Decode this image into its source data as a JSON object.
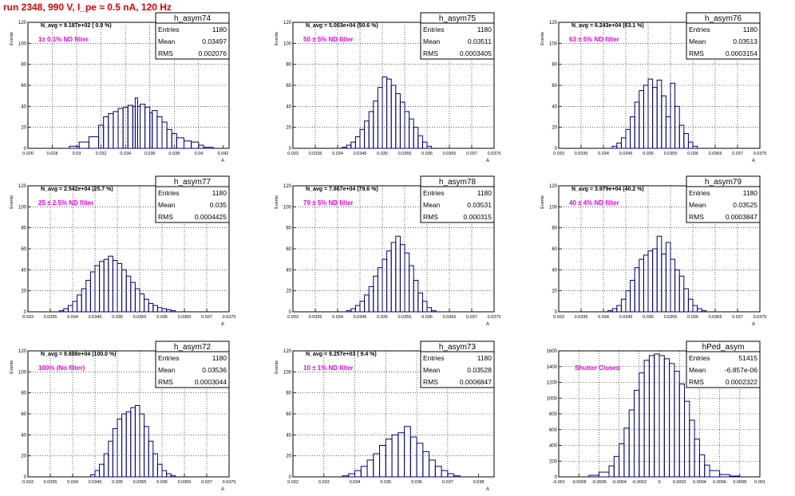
{
  "page_title": "run 2348,   990 V, I_pe ≈ 0.5 nA, 120 Hz",
  "colors": {
    "histogram": "#00007a",
    "annotation": "#e600e6",
    "title": "#e00000",
    "grid": "#000000"
  },
  "chart_data": [
    {
      "type": "bar",
      "hist_name": "h_asym74",
      "stats": {
        "entries": "1180",
        "mean": "0.03497",
        "rms": "0.002076"
      },
      "navg_text": "N_avg = 9.187e+02 ( 0.9 %)",
      "filter_label": "1± 0.1% ND filter",
      "ylabel": "Events",
      "xlabel": "A",
      "xlim": [
        0.026,
        0.0425
      ],
      "ylim": [
        0,
        120
      ],
      "xticks": [
        0.026,
        0.028,
        0.03,
        0.032,
        0.034,
        0.036,
        0.038,
        0.04,
        0.042
      ],
      "xtick_labels": [
        "0.026",
        "0.028",
        "0.03",
        "0.032",
        "0.034",
        "0.036",
        "0.038",
        "0.04",
        "0.042"
      ],
      "yticks": [
        0,
        20,
        40,
        60,
        80,
        100,
        120
      ],
      "x": [
        0.0294,
        0.0302,
        0.031,
        0.0318,
        0.0322,
        0.0326,
        0.033,
        0.0334,
        0.0338,
        0.0342,
        0.0346,
        0.0348,
        0.035,
        0.0352,
        0.0356,
        0.036,
        0.0362,
        0.0366,
        0.037,
        0.0374,
        0.0378,
        0.0382,
        0.0388,
        0.0394,
        0.04,
        0.0404
      ],
      "y": [
        2,
        6,
        11,
        22,
        30,
        33,
        35,
        38,
        39,
        41,
        40,
        48,
        40,
        42,
        39,
        34,
        36,
        30,
        25,
        18,
        14,
        10,
        7,
        6,
        3,
        1
      ]
    },
    {
      "type": "bar",
      "hist_name": "h_asym75",
      "stats": {
        "entries": "1180",
        "mean": "0.03511",
        "rms": "0.0003405"
      },
      "navg_text": "N_avg = 5.003e+04 (50.6 %)",
      "filter_label": "50 ± 5% ND filter",
      "ylabel": "Events",
      "xlabel": "A",
      "xlim": [
        0.033,
        0.0375
      ],
      "ylim": [
        0,
        120
      ],
      "xticks": [
        0.033,
        0.0335,
        0.034,
        0.0345,
        0.035,
        0.0355,
        0.036,
        0.0365,
        0.037,
        0.0375
      ],
      "xtick_labels": [
        "0.033",
        "0.0335",
        "0.034",
        "0.0345",
        "0.035",
        "0.0355",
        "0.036",
        "0.0365",
        "0.037",
        "0.0375"
      ],
      "yticks": [
        0,
        20,
        40,
        60,
        80,
        100,
        120
      ],
      "x": [
        0.0341,
        0.0342,
        0.0343,
        0.0344,
        0.0345,
        0.0346,
        0.0347,
        0.0348,
        0.0349,
        0.035,
        0.0351,
        0.0352,
        0.0353,
        0.0354,
        0.0355,
        0.0356,
        0.0357,
        0.0358,
        0.0359,
        0.036
      ],
      "y": [
        1,
        3,
        6,
        11,
        18,
        26,
        35,
        45,
        58,
        68,
        66,
        60,
        52,
        44,
        35,
        28,
        20,
        12,
        6,
        2
      ]
    },
    {
      "type": "bar",
      "hist_name": "h_asym76",
      "stats": {
        "entries": "1180",
        "mean": "0.03513",
        "rms": "0.0003154"
      },
      "navg_text": "N_avg = 6.243e+04 (63.1 %)",
      "filter_label": "63 ± 5% ND filter",
      "ylabel": "Events",
      "xlabel": "A",
      "xlim": [
        0.033,
        0.0375
      ],
      "ylim": [
        0,
        120
      ],
      "xticks": [
        0.033,
        0.0335,
        0.034,
        0.0345,
        0.035,
        0.0355,
        0.036,
        0.0365,
        0.037,
        0.0375
      ],
      "xtick_labels": [
        "0.033",
        "0.0335",
        "0.034",
        "0.0345",
        "0.035",
        "0.0355",
        "0.036",
        "0.0365",
        "0.037",
        "0.0375"
      ],
      "yticks": [
        0,
        20,
        40,
        60,
        80,
        100,
        120
      ],
      "x": [
        0.0342,
        0.0343,
        0.0344,
        0.0345,
        0.0346,
        0.0347,
        0.0348,
        0.0349,
        0.035,
        0.0351,
        0.0352,
        0.0353,
        0.0354,
        0.0355,
        0.0356,
        0.0357,
        0.0358,
        0.0359,
        0.036
      ],
      "y": [
        2,
        5,
        10,
        18,
        30,
        44,
        55,
        60,
        66,
        58,
        65,
        50,
        30,
        62,
        40,
        22,
        14,
        6,
        2
      ]
    },
    {
      "type": "bar",
      "hist_name": "h_asym77",
      "stats": {
        "entries": "1180",
        "mean": "0.035",
        "rms": "0.0004425"
      },
      "navg_text": "N_avg = 2.542e+04 (25.7 %)",
      "filter_label": "25 ± 2.5% ND filter",
      "ylabel": "Events",
      "xlabel": "A",
      "xlim": [
        0.033,
        0.0375
      ],
      "ylim": [
        0,
        120
      ],
      "xticks": [
        0.033,
        0.0335,
        0.034,
        0.0345,
        0.035,
        0.0355,
        0.036,
        0.0365,
        0.037,
        0.0375
      ],
      "xtick_labels": [
        "0.033",
        "0.0335",
        "0.034",
        "0.0345",
        "0.035",
        "0.0355",
        "0.036",
        "0.0365",
        "0.037",
        "0.0375"
      ],
      "yticks": [
        0,
        20,
        40,
        60,
        80,
        100,
        120
      ],
      "x": [
        0.0337,
        0.0338,
        0.0339,
        0.034,
        0.0341,
        0.0342,
        0.0343,
        0.0344,
        0.0345,
        0.0346,
        0.0347,
        0.0348,
        0.0349,
        0.035,
        0.0351,
        0.0352,
        0.0353,
        0.0354,
        0.0355,
        0.0356,
        0.0357,
        0.0358,
        0.0359,
        0.036,
        0.0361,
        0.0362
      ],
      "y": [
        1,
        3,
        6,
        10,
        16,
        22,
        30,
        38,
        44,
        48,
        50,
        53,
        49,
        46,
        40,
        34,
        28,
        22,
        17,
        12,
        8,
        6,
        4,
        3,
        2,
        1
      ]
    },
    {
      "type": "bar",
      "hist_name": "h_asym78",
      "stats": {
        "entries": "1180",
        "mean": "0.03531",
        "rms": "0.000315"
      },
      "navg_text": "N_avg = 7.867e+04 (79.6 %)",
      "filter_label": "79 ± 5% ND filter",
      "ylabel": "Events",
      "xlabel": "A",
      "xlim": [
        0.033,
        0.0375
      ],
      "ylim": [
        0,
        120
      ],
      "xticks": [
        0.033,
        0.0335,
        0.034,
        0.0345,
        0.035,
        0.0355,
        0.036,
        0.0365,
        0.037,
        0.0375
      ],
      "xtick_labels": [
        "0.033",
        "0.0335",
        "0.034",
        "0.0345",
        "0.035",
        "0.0355",
        "0.036",
        "0.0365",
        "0.037",
        "0.0375"
      ],
      "yticks": [
        0,
        20,
        40,
        60,
        80,
        100,
        120
      ],
      "x": [
        0.0342,
        0.0343,
        0.0344,
        0.0345,
        0.0346,
        0.0347,
        0.0348,
        0.0349,
        0.035,
        0.0351,
        0.0352,
        0.0353,
        0.0354,
        0.0355,
        0.0356,
        0.0357,
        0.0358,
        0.0359,
        0.036,
        0.0361
      ],
      "y": [
        1,
        3,
        6,
        10,
        16,
        24,
        34,
        42,
        50,
        58,
        66,
        72,
        64,
        56,
        44,
        30,
        18,
        10,
        4,
        1
      ]
    },
    {
      "type": "bar",
      "hist_name": "h_asym79",
      "stats": {
        "entries": "1180",
        "mean": "0.03525",
        "rms": "0.0003847"
      },
      "navg_text": "N_avg = 3.979e+04 (40.2 %)",
      "filter_label": "40 ± 4% ND filter",
      "ylabel": "Events",
      "xlabel": "A",
      "xlim": [
        0.033,
        0.0375
      ],
      "ylim": [
        0,
        120
      ],
      "xticks": [
        0.033,
        0.0335,
        0.034,
        0.0345,
        0.035,
        0.0355,
        0.036,
        0.0365,
        0.037,
        0.0375
      ],
      "xtick_labels": [
        "0.033",
        "0.0335",
        "0.034",
        "0.0345",
        "0.035",
        "0.0355",
        "0.036",
        "0.0365",
        "0.037",
        "0.0375"
      ],
      "yticks": [
        0,
        20,
        40,
        60,
        80,
        100,
        120
      ],
      "x": [
        0.0341,
        0.0342,
        0.0343,
        0.0344,
        0.0345,
        0.0346,
        0.0347,
        0.0348,
        0.0349,
        0.035,
        0.0351,
        0.0352,
        0.0353,
        0.0354,
        0.0355,
        0.0356,
        0.0357,
        0.0358,
        0.0359,
        0.036,
        0.0361,
        0.0362
      ],
      "y": [
        1,
        3,
        6,
        12,
        20,
        30,
        42,
        50,
        54,
        58,
        60,
        72,
        55,
        66,
        50,
        40,
        34,
        22,
        12,
        6,
        3,
        1
      ]
    },
    {
      "type": "bar",
      "hist_name": "h_asym72",
      "stats": {
        "entries": "1180",
        "mean": "0.03536",
        "rms": "0.0003044"
      },
      "navg_text": "N_avg = 9.888e+04 (100.0 %)",
      "filter_label": "100% (No filter)",
      "ylabel": "Events",
      "xlabel": "A",
      "xlim": [
        0.033,
        0.0375
      ],
      "ylim": [
        0,
        120
      ],
      "xticks": [
        0.033,
        0.0335,
        0.034,
        0.0345,
        0.035,
        0.0355,
        0.036,
        0.0365,
        0.037,
        0.0375
      ],
      "xtick_labels": [
        "0.033",
        "0.0335",
        "0.034",
        "0.0345",
        "0.035",
        "0.0355",
        "0.036",
        "0.0365",
        "0.037",
        "0.0375"
      ],
      "yticks": [
        0,
        20,
        40,
        60,
        80,
        100,
        120
      ],
      "x": [
        0.0344,
        0.0345,
        0.0346,
        0.0347,
        0.0348,
        0.0349,
        0.035,
        0.0351,
        0.0352,
        0.0353,
        0.0354,
        0.0355,
        0.0356,
        0.0357,
        0.0358,
        0.0359,
        0.036,
        0.0361,
        0.0362
      ],
      "y": [
        2,
        6,
        12,
        22,
        34,
        46,
        55,
        60,
        62,
        66,
        68,
        60,
        48,
        34,
        22,
        12,
        6,
        3,
        1
      ]
    },
    {
      "type": "bar",
      "hist_name": "h_asym73",
      "stats": {
        "entries": "1180",
        "mean": "0.03528",
        "rms": "0.0006847"
      },
      "navg_text": "N_avg = 9.257e+03 ( 9.4 %)",
      "filter_label": "10 ± 1% ND filter",
      "ylabel": "Events",
      "xlabel": "A",
      "xlim": [
        0.032,
        0.0385
      ],
      "ylim": [
        0,
        120
      ],
      "xticks": [
        0.032,
        0.033,
        0.034,
        0.035,
        0.036,
        0.037,
        0.038
      ],
      "xtick_labels": [
        "0.032",
        "0.033",
        "0.034",
        "0.035",
        "0.036",
        "0.037",
        "0.038"
      ],
      "yticks": [
        0,
        20,
        40,
        60,
        80,
        100,
        120
      ],
      "x": [
        0.0336,
        0.0338,
        0.034,
        0.0342,
        0.0344,
        0.0346,
        0.0348,
        0.035,
        0.0352,
        0.0354,
        0.0356,
        0.0358,
        0.036,
        0.0362,
        0.0364,
        0.0366,
        0.0368,
        0.037,
        0.0372
      ],
      "y": [
        1,
        3,
        6,
        10,
        16,
        22,
        30,
        36,
        40,
        42,
        48,
        38,
        32,
        24,
        16,
        10,
        6,
        3,
        1
      ]
    },
    {
      "type": "bar",
      "hist_name": "hPed_asym",
      "stats": {
        "entries": "51415",
        "mean": "-6.857e-06",
        "rms": "0.0002322"
      },
      "navg_text": "",
      "filter_label": "Shutter Closed",
      "ylabel": "",
      "xlabel": "",
      "xlim": [
        -0.001,
        0.001
      ],
      "ylim": [
        0,
        1600
      ],
      "xticks": [
        -0.001,
        -0.0008,
        -0.0006,
        -0.0004,
        -0.0002,
        0,
        0.0002,
        0.0004,
        0.0006,
        0.0008,
        0.001
      ],
      "xtick_labels": [
        "-0.001",
        "-0.0008",
        "-0.0006",
        "-0.0004",
        "-0.0002",
        "0",
        "0.0002",
        "0.0004",
        "0.0006",
        "0.0008",
        "0.001"
      ],
      "yticks": [
        0,
        200,
        400,
        600,
        800,
        1000,
        1200,
        1400,
        1600
      ],
      "x": [
        -0.0007,
        -0.0006,
        -0.0005,
        -0.00045,
        -0.0004,
        -0.00035,
        -0.0003,
        -0.00025,
        -0.0002,
        -0.00015,
        -0.0001,
        -5e-05,
        0,
        5e-05,
        0.0001,
        0.00015,
        0.0002,
        0.00025,
        0.0003,
        0.00035,
        0.0004,
        0.00045,
        0.0005,
        0.0006,
        0.0007
      ],
      "y": [
        20,
        60,
        140,
        260,
        420,
        620,
        850,
        1100,
        1320,
        1480,
        1540,
        1560,
        1540,
        1500,
        1440,
        1340,
        1180,
        960,
        720,
        480,
        280,
        150,
        80,
        30,
        10
      ]
    }
  ]
}
